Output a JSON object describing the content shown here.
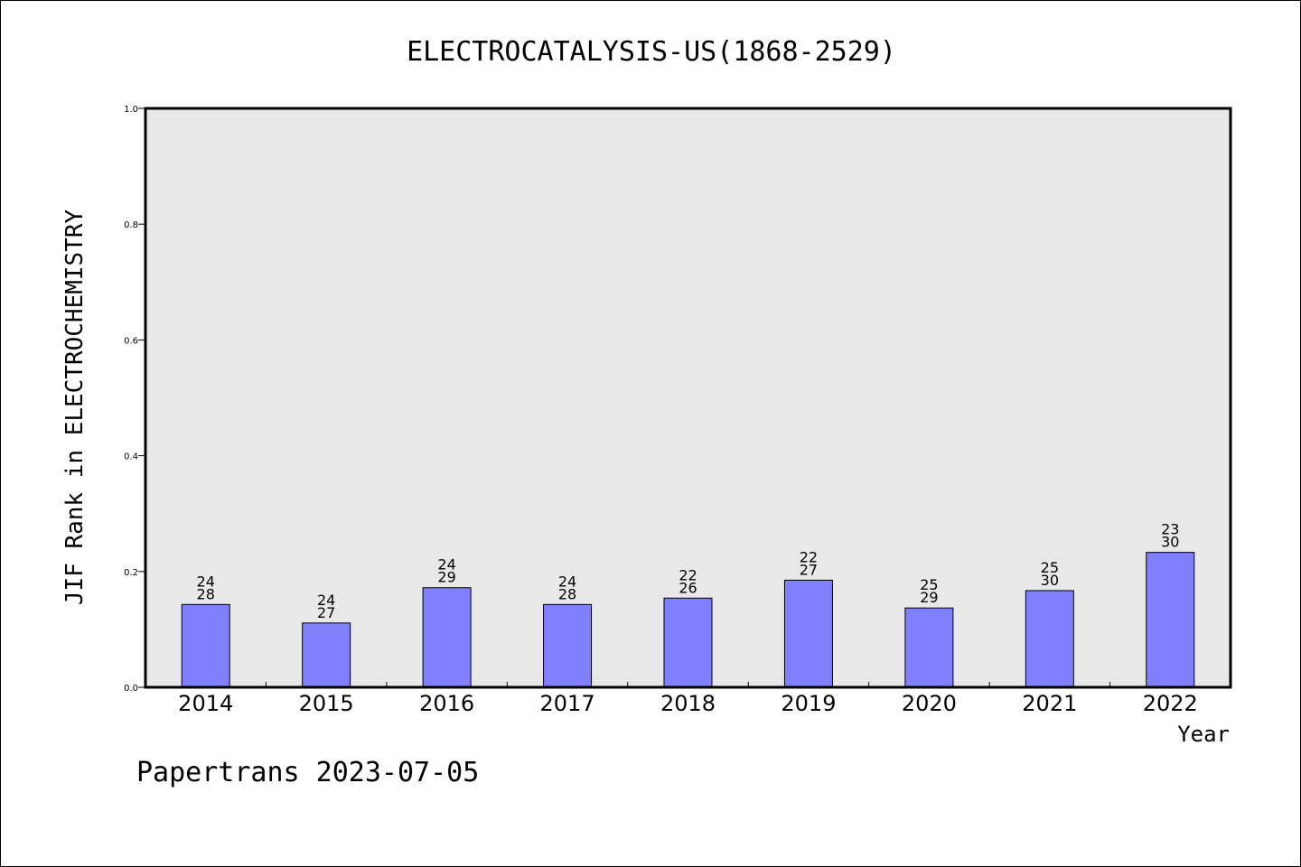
{
  "chart_data": {
    "type": "bar",
    "title": "ELECTROCATALYSIS-US(1868-2529)",
    "xlabel": "Year",
    "ylabel": "JIF Rank in ELECTROCHEMISTRY",
    "categories": [
      "2014",
      "2015",
      "2016",
      "2017",
      "2018",
      "2019",
      "2020",
      "2021",
      "2022"
    ],
    "values": [
      0.143,
      0.111,
      0.172,
      0.143,
      0.154,
      0.185,
      0.137,
      0.167,
      0.233
    ],
    "bar_labels": [
      {
        "rank": "24",
        "total": "28"
      },
      {
        "rank": "24",
        "total": "27"
      },
      {
        "rank": "24",
        "total": "29"
      },
      {
        "rank": "24",
        "total": "28"
      },
      {
        "rank": "22",
        "total": "26"
      },
      {
        "rank": "22",
        "total": "27"
      },
      {
        "rank": "25",
        "total": "29"
      },
      {
        "rank": "25",
        "total": "30"
      },
      {
        "rank": "23",
        "total": "30"
      }
    ],
    "ylim": [
      0,
      1.0
    ],
    "yticks": [
      "0.0",
      "0.2",
      "0.4",
      "0.6",
      "0.8",
      "1.0"
    ],
    "grid": false,
    "bar_color": "#8080ff",
    "plot_background": "#e8e8e8"
  },
  "footer": "Papertrans 2023-07-05"
}
